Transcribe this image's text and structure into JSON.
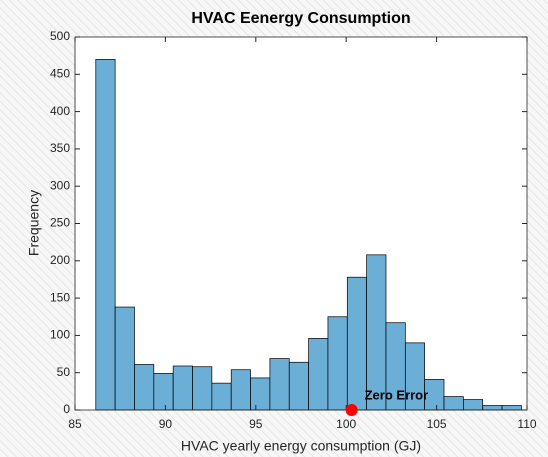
{
  "chart_data": {
    "type": "histogram",
    "title": "HVAC Eenergy Consumption",
    "xlabel": "HVAC yearly energy consumption (GJ)",
    "ylabel": "Frequency",
    "bins": [
      86.15,
      87.22,
      88.29,
      89.36,
      90.43,
      91.5,
      92.57,
      93.64,
      94.71,
      95.78,
      96.85,
      97.92,
      98.99,
      100.06,
      101.13,
      102.2,
      103.27,
      104.34,
      105.41,
      106.48,
      107.55,
      108.62,
      109.69
    ],
    "values": [
      470,
      138,
      61,
      49,
      59,
      58,
      36,
      54,
      43,
      69,
      64,
      96,
      125,
      178,
      208,
      117,
      90,
      41,
      18,
      14,
      6,
      6
    ],
    "color": "#6baed6",
    "xlim": [
      85,
      110
    ],
    "xticks": [
      85,
      90,
      95,
      100,
      105,
      110
    ],
    "ylim": [
      0,
      500
    ],
    "yticks": [
      0,
      50,
      100,
      150,
      200,
      250,
      300,
      350,
      400,
      450,
      500
    ],
    "marker": {
      "x": 100.3,
      "y": 0,
      "color": "#ff0000",
      "label": "Zero Error"
    }
  }
}
